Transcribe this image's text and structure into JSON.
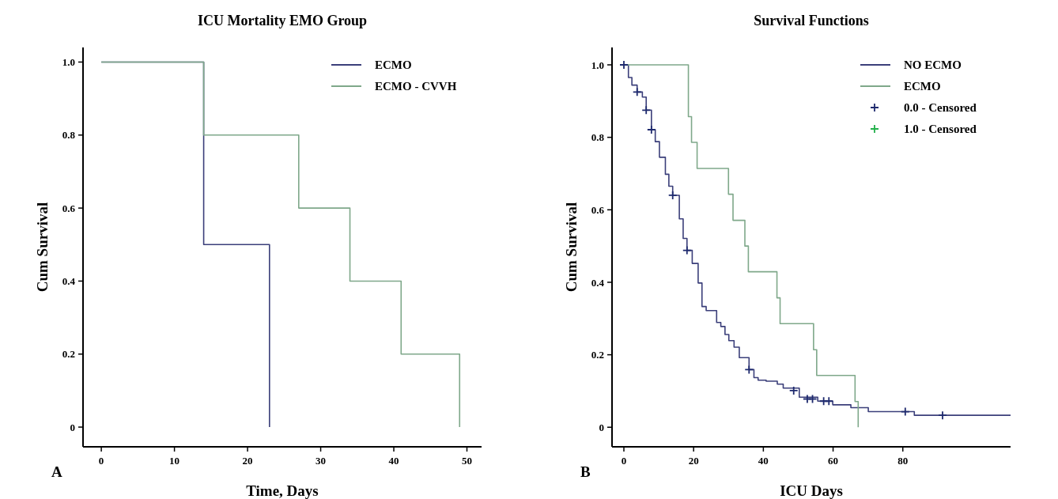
{
  "chart_data": [
    {
      "type": "step",
      "title": "ICU Mortality EMO Group",
      "xlabel": "Time, Days",
      "ylabel": "Cum Survival",
      "annotations": [
        "A"
      ],
      "xlim": [
        -2.5,
        52
      ],
      "ylim": [
        -0.054,
        1.04
      ],
      "xticks": [
        0,
        10,
        20,
        30,
        40,
        50
      ],
      "yticks": [
        0,
        0.2,
        0.4,
        0.6,
        0.8,
        {
          "value": 1,
          "label": "1.0"
        }
      ],
      "grid": false,
      "legend": "top right",
      "line_style": "solid",
      "series": [
        {
          "name": "ECMO",
          "color": "#3b3f7a",
          "x": [
            0,
            14,
            23
          ],
          "values": [
            1,
            0.5,
            0
          ]
        },
        {
          "name": "ECMO - CVVH",
          "color": "#7fa88a",
          "x": [
            0,
            14,
            27,
            34,
            41,
            49
          ],
          "values": [
            1,
            0.8,
            0.6,
            0.4,
            0.2,
            0
          ]
        }
      ]
    },
    {
      "type": "step",
      "title": "Survival Functions",
      "xlabel": "ICU Days",
      "ylabel": "Cum Survival",
      "annotations": [
        "B"
      ],
      "xlim": [
        -3.4,
        110.9
      ],
      "ylim": [
        -0.054,
        1.048
      ],
      "xticks": [
        0,
        20,
        40,
        60,
        80
      ],
      "yticks": [
        0,
        0.2,
        0.4,
        0.6,
        0.8,
        {
          "value": 1,
          "label": "1.0"
        }
      ],
      "grid": false,
      "legend": "top right",
      "line_style": "solid",
      "series": [
        {
          "name": "NO ECMO",
          "color": "#3b3f7a",
          "x": [
            0,
            1.3,
            2.3,
            3.8,
            5.3,
            6.4,
            7.9,
            9.0,
            10.2,
            11.9,
            12.9,
            14.0,
            15.9,
            17.0,
            18.1,
            19.6,
            21.3,
            22.4,
            23.6,
            26.6,
            27.8,
            29.0,
            30.1,
            31.6,
            33.1,
            35.9,
            37.3,
            38.5,
            40.8,
            44.0,
            45.7,
            50.3,
            55.6,
            59.9,
            65.1,
            70.1,
            83.3,
            110.9
          ],
          "values": [
            1,
            0.965,
            0.944,
            0.925,
            0.911,
            0.875,
            0.821,
            0.788,
            0.745,
            0.698,
            0.665,
            0.64,
            0.575,
            0.521,
            0.488,
            0.452,
            0.398,
            0.333,
            0.322,
            0.289,
            0.278,
            0.256,
            0.239,
            0.221,
            0.192,
            0.159,
            0.137,
            0.13,
            0.127,
            0.119,
            0.108,
            0.083,
            0.072,
            0.062,
            0.054,
            0.043,
            0.033,
            0.033
          ]
        },
        {
          "name": "ECMO",
          "color": "#7fa88a",
          "x": [
            0,
            18.5,
            19.4,
            21,
            30,
            31.3,
            34.7,
            35.7,
            43.9,
            44.8,
            54.4,
            55.3,
            66.3,
            67.2
          ],
          "values": [
            1,
            0.857,
            0.786,
            0.714,
            0.643,
            0.571,
            0.5,
            0.429,
            0.357,
            0.286,
            0.214,
            0.143,
            0.071,
            0
          ]
        },
        {
          "name": "0.0 - Censored",
          "type": "scatter",
          "marker": "cross",
          "color": "#1e2a6e",
          "x": [
            0,
            3.8,
            6.4,
            7.9,
            14.0,
            18.1,
            35.9,
            48.7,
            52.6,
            54.1,
            57.3,
            58.8,
            80.7,
            91.4
          ],
          "values": [
            1,
            0.925,
            0.875,
            0.821,
            0.64,
            0.488,
            0.159,
            0.101,
            0.078,
            0.078,
            0.072,
            0.072,
            0.043,
            0.033
          ]
        },
        {
          "name": "1.0 - Censored",
          "type": "scatter",
          "marker": "cross",
          "color": "#22b04a"
        }
      ]
    }
  ]
}
